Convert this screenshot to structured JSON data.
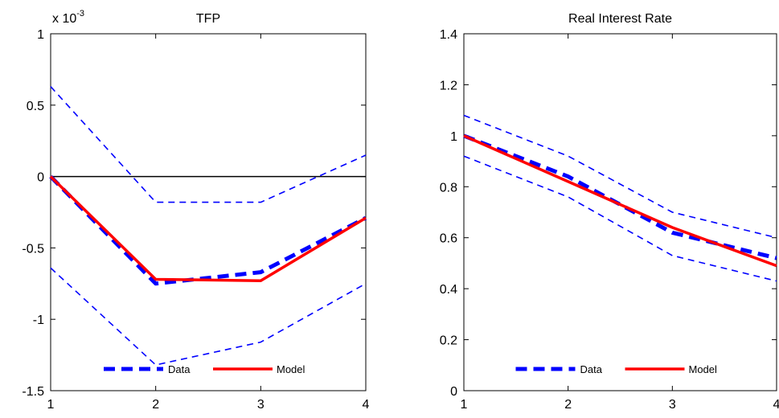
{
  "chart_data": [
    {
      "type": "line",
      "title": "TFP",
      "exponent_label": "x 10",
      "exponent_power": "-3",
      "x": [
        1,
        2,
        3,
        4
      ],
      "xlim": [
        1,
        4
      ],
      "ylim": [
        -1.5,
        1
      ],
      "xticks": [
        "1",
        "2",
        "3",
        "4"
      ],
      "yticks": [
        "1",
        "0.5",
        "0",
        "-0.5",
        "-1",
        "-1.5"
      ],
      "ytick_values": [
        1,
        0.5,
        0,
        -0.5,
        -1,
        -1.5
      ],
      "zero_line": true,
      "series": [
        {
          "name": "Data",
          "values": [
            0.0,
            -0.75,
            -0.67,
            -0.29
          ],
          "color": "#0000ff",
          "style": "dashed-thick"
        },
        {
          "name": "",
          "values": [
            0.63,
            -0.18,
            -0.18,
            0.15
          ],
          "color": "#0000ff",
          "style": "dashed-thin"
        },
        {
          "name": "",
          "values": [
            -0.64,
            -1.32,
            -1.16,
            -0.75
          ],
          "color": "#0000ff",
          "style": "dashed-thin"
        },
        {
          "name": "Model",
          "values": [
            0.0,
            -0.72,
            -0.73,
            -0.29
          ],
          "color": "#ff0000",
          "style": "solid"
        }
      ],
      "legend": {
        "position": "bottom-center",
        "entries": [
          "Data",
          "Model"
        ]
      }
    },
    {
      "type": "line",
      "title": "Real Interest Rate",
      "x": [
        1,
        2,
        3,
        4
      ],
      "xlim": [
        1,
        4
      ],
      "ylim": [
        0,
        1.4
      ],
      "xticks": [
        "1",
        "2",
        "3",
        "4"
      ],
      "yticks": [
        "1.4",
        "1.2",
        "1",
        "0.8",
        "0.6",
        "0.4",
        "0.2",
        "0"
      ],
      "ytick_values": [
        1.4,
        1.2,
        1,
        0.8,
        0.6,
        0.4,
        0.2,
        0
      ],
      "zero_line": false,
      "series": [
        {
          "name": "Data",
          "values": [
            1.0,
            0.84,
            0.62,
            0.52
          ],
          "color": "#0000ff",
          "style": "dashed-thick"
        },
        {
          "name": "",
          "values": [
            1.08,
            0.92,
            0.7,
            0.6
          ],
          "color": "#0000ff",
          "style": "dashed-thin"
        },
        {
          "name": "",
          "values": [
            0.92,
            0.76,
            0.53,
            0.43
          ],
          "color": "#0000ff",
          "style": "dashed-thin"
        },
        {
          "name": "Model",
          "values": [
            1.0,
            0.82,
            0.64,
            0.49
          ],
          "color": "#ff0000",
          "style": "solid"
        }
      ],
      "legend": {
        "position": "bottom-center",
        "entries": [
          "Data",
          "Model"
        ]
      }
    }
  ]
}
